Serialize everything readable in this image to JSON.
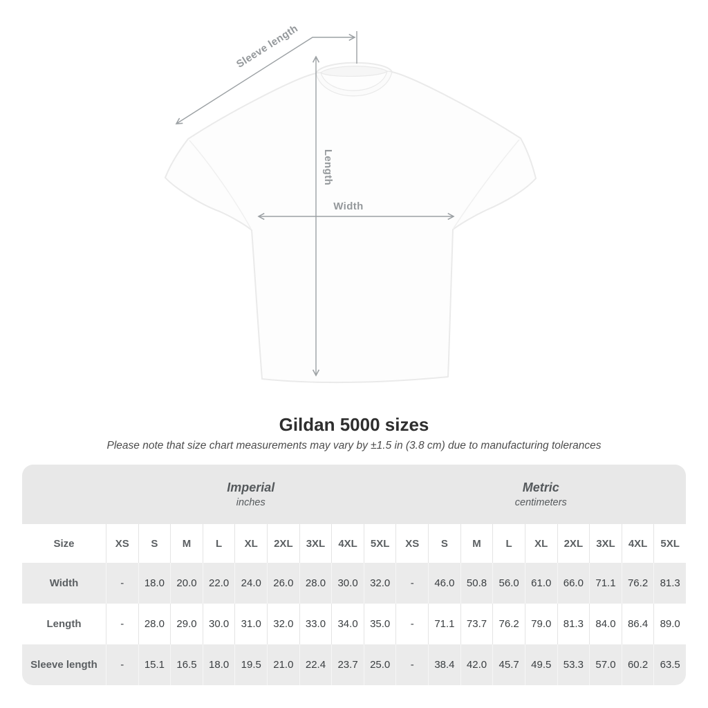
{
  "heading": {
    "title": "Gildan 5000 sizes",
    "subtitle": "Please note that size chart measurements may vary by ±1.5 in (3.8 cm) due to manufacturing tolerances"
  },
  "diagram": {
    "sleeve_label": "Sleeve length",
    "length_label": "Length",
    "width_label": "Width",
    "line_color": "#9ba0a3",
    "label_color": "#94989b"
  },
  "size_chart": {
    "corner_label": "Size",
    "unit_groups": [
      {
        "label": "Imperial",
        "sublabel": "inches"
      },
      {
        "label": "Metric",
        "sublabel": "centimeters"
      }
    ],
    "sizes": [
      "XS",
      "S",
      "M",
      "L",
      "XL",
      "2XL",
      "3XL",
      "4XL",
      "5XL"
    ],
    "rows": [
      {
        "label": "Width",
        "imperial": [
          "-",
          "18.0",
          "20.0",
          "22.0",
          "24.0",
          "26.0",
          "28.0",
          "30.0",
          "32.0"
        ],
        "metric": [
          "-",
          "46.0",
          "50.8",
          "56.0",
          "61.0",
          "66.0",
          "71.1",
          "76.2",
          "81.3"
        ]
      },
      {
        "label": "Length",
        "imperial": [
          "-",
          "28.0",
          "29.0",
          "30.0",
          "31.0",
          "32.0",
          "33.0",
          "34.0",
          "35.0"
        ],
        "metric": [
          "-",
          "71.1",
          "73.7",
          "76.2",
          "79.0",
          "81.3",
          "84.0",
          "86.4",
          "89.0"
        ]
      },
      {
        "label": "Sleeve length",
        "imperial": [
          "-",
          "15.1",
          "16.5",
          "18.0",
          "19.5",
          "21.0",
          "22.4",
          "23.7",
          "25.0"
        ],
        "metric": [
          "-",
          "38.4",
          "42.0",
          "45.7",
          "49.5",
          "53.3",
          "57.0",
          "60.2",
          "63.5"
        ]
      }
    ],
    "colors": {
      "header_bg": "#e8e8e8",
      "stripe_bg": "#ebebeb",
      "plain_bg": "#ffffff"
    }
  }
}
